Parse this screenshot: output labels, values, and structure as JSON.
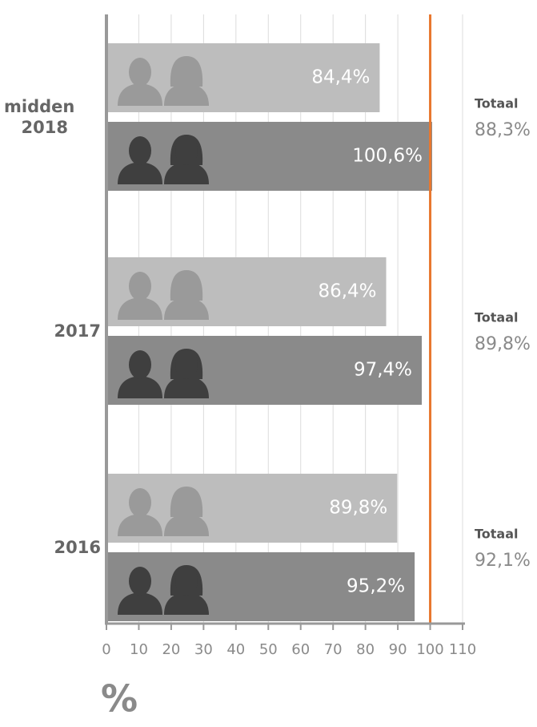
{
  "chart_data": {
    "type": "bar",
    "orientation": "horizontal",
    "categories": [
      "midden 2018",
      "2017",
      "2016"
    ],
    "series": [
      {
        "color": "#bdbdbd",
        "values": [
          84.4,
          86.4,
          89.8
        ],
        "value_labels": [
          "84,4%",
          "86,4%",
          "89,8%"
        ]
      },
      {
        "color": "#8a8a8a",
        "values": [
          100.6,
          97.4,
          95.2
        ],
        "value_labels": [
          "100,6%",
          "97,4%",
          "95,2%"
        ]
      }
    ],
    "totals": {
      "label": "Totaal",
      "values": [
        88.3,
        89.8,
        92.1
      ],
      "value_labels": [
        "88,3%",
        "89,8%",
        "92,1%"
      ]
    },
    "reference_line": {
      "value": 100,
      "color": "#e8772e"
    },
    "xlabel": "%",
    "xlim": [
      0,
      110
    ],
    "xticks": [
      0,
      10,
      20,
      30,
      40,
      50,
      60,
      70,
      80,
      90,
      100,
      110
    ],
    "grid": true
  }
}
